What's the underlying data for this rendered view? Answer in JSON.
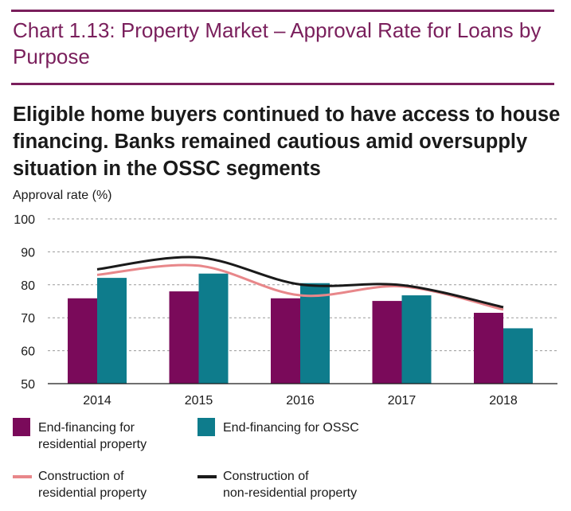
{
  "header": {
    "chart_number": "Chart 1.13: Property Market – Approval Rate for Loans by Purpose",
    "headline": "Eligible home buyers continued to have access to house financing. Banks remained cautious amid oversupply situation in the OSSC segments"
  },
  "colors": {
    "rule": "#7a1f5c",
    "bar_residential": "#7a0a5a",
    "bar_ossc": "#0e7c8c",
    "line_residential": "#e8878a",
    "line_nonresidential": "#1a1a1a",
    "grid": "#9a9a9a"
  },
  "chart_data": {
    "type": "bar",
    "ylabel": "Approval rate (%)",
    "ylim": [
      50,
      100
    ],
    "yticks": [
      50,
      60,
      70,
      80,
      90,
      100
    ],
    "grid": true,
    "categories": [
      "2014",
      "2015",
      "2016",
      "2017",
      "2018"
    ],
    "series": [
      {
        "name": "End-financing for residential property",
        "kind": "bar",
        "values": [
          75.9,
          78.0,
          75.9,
          75.1,
          71.5
        ]
      },
      {
        "name": "End-financing for OSSC",
        "kind": "bar",
        "values": [
          82.1,
          83.4,
          80.5,
          76.8,
          66.8
        ]
      },
      {
        "name": "Construction of residential property",
        "kind": "line",
        "values": [
          83.0,
          85.8,
          76.8,
          79.5,
          72.5
        ]
      },
      {
        "name": "Construction of non-residential property",
        "kind": "line",
        "values": [
          84.7,
          88.3,
          80.1,
          79.9,
          73.2
        ]
      }
    ],
    "legend": {
      "placement": "bottom",
      "items": [
        {
          "label_line1": "End-financing for",
          "label_line2": "residential property",
          "swatch": "box",
          "color": "#7a0a5a"
        },
        {
          "label_line1": "End-financing for OSSC",
          "label_line2": "",
          "swatch": "box",
          "color": "#0e7c8c"
        },
        {
          "label_line1": "Construction of",
          "label_line2": "residential property",
          "swatch": "line",
          "color": "#e8878a"
        },
        {
          "label_line1": "Construction of",
          "label_line2": "non-residential property",
          "swatch": "line",
          "color": "#1a1a1a"
        }
      ]
    }
  }
}
